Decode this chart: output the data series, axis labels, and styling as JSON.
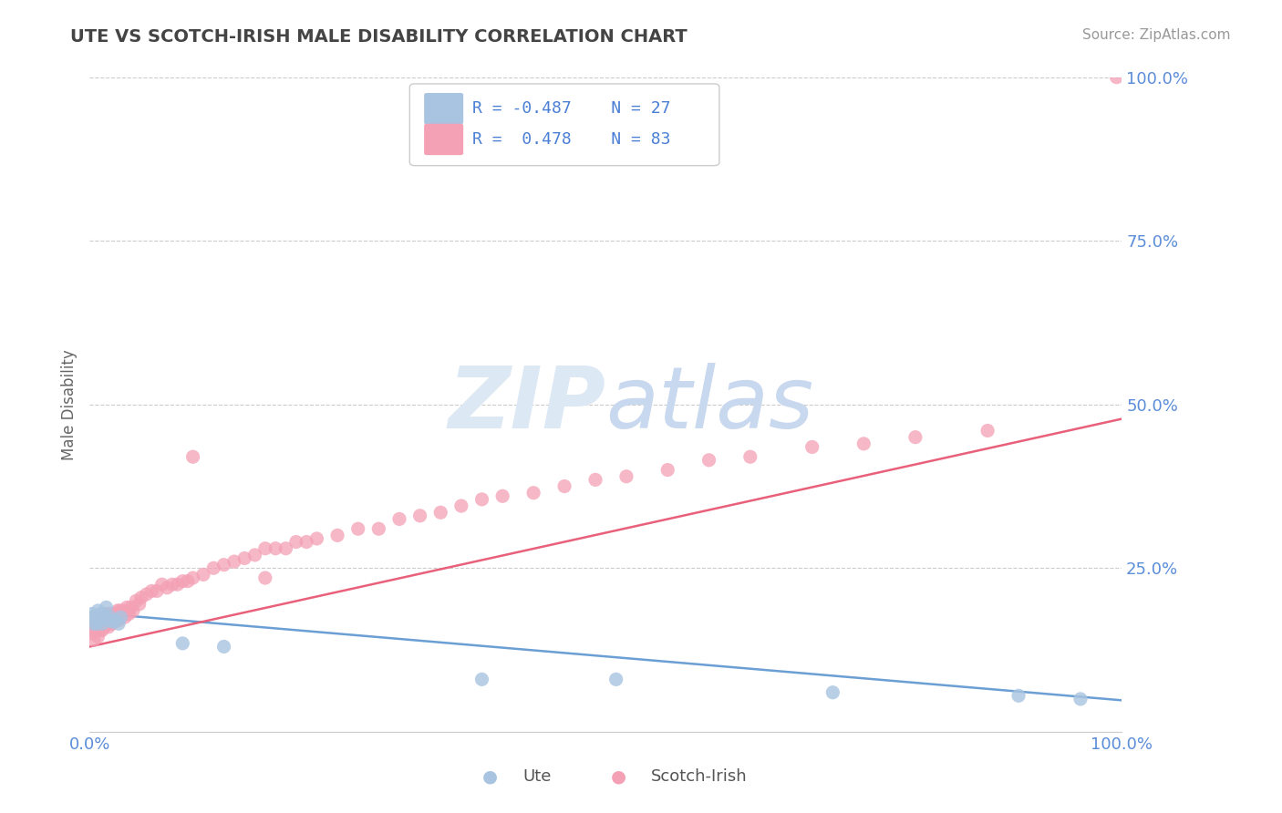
{
  "title": "UTE VS SCOTCH-IRISH MALE DISABILITY CORRELATION CHART",
  "source": "Source: ZipAtlas.com",
  "ylabel": "Male Disability",
  "xlim": [
    0,
    1
  ],
  "ylim": [
    0,
    1
  ],
  "xticks": [
    0.0,
    1.0
  ],
  "xticklabels": [
    "0.0%",
    "100.0%"
  ],
  "yticks": [
    0.0,
    0.25,
    0.5,
    0.75,
    1.0
  ],
  "yticklabels": [
    "",
    "25.0%",
    "50.0%",
    "75.0%",
    "100.0%"
  ],
  "ute_R": -0.487,
  "ute_N": 27,
  "scotch_R": 0.478,
  "scotch_N": 83,
  "ute_color": "#a8c4e0",
  "scotch_color": "#f4a0b5",
  "ute_line_color": "#6b9fd4",
  "scotch_line_color": "#e8607a",
  "background_color": "#ffffff",
  "grid_color": "#cccccc",
  "title_color": "#444444",
  "label_color": "#5b8dd9",
  "watermark_color": "#dde8f5",
  "legend_R_color": "#4a7fd4",
  "ute_x": [
    0.002,
    0.003,
    0.004,
    0.005,
    0.006,
    0.007,
    0.008,
    0.009,
    0.01,
    0.011,
    0.012,
    0.013,
    0.015,
    0.016,
    0.018,
    0.02,
    0.022,
    0.025,
    0.028,
    0.03,
    0.09,
    0.13,
    0.38,
    0.51,
    0.72,
    0.9,
    0.96
  ],
  "ute_y": [
    0.18,
    0.175,
    0.165,
    0.17,
    0.175,
    0.165,
    0.185,
    0.17,
    0.175,
    0.18,
    0.165,
    0.18,
    0.175,
    0.19,
    0.17,
    0.175,
    0.168,
    0.17,
    0.165,
    0.175,
    0.135,
    0.13,
    0.08,
    0.08,
    0.06,
    0.055,
    0.05
  ],
  "scotch_x": [
    0.002,
    0.003,
    0.004,
    0.005,
    0.006,
    0.007,
    0.008,
    0.009,
    0.01,
    0.011,
    0.012,
    0.013,
    0.014,
    0.015,
    0.016,
    0.017,
    0.018,
    0.019,
    0.02,
    0.021,
    0.022,
    0.023,
    0.024,
    0.025,
    0.026,
    0.027,
    0.028,
    0.029,
    0.03,
    0.032,
    0.034,
    0.036,
    0.038,
    0.04,
    0.042,
    0.045,
    0.048,
    0.05,
    0.055,
    0.06,
    0.065,
    0.07,
    0.075,
    0.08,
    0.085,
    0.09,
    0.095,
    0.1,
    0.11,
    0.12,
    0.13,
    0.14,
    0.15,
    0.16,
    0.17,
    0.18,
    0.19,
    0.2,
    0.21,
    0.22,
    0.24,
    0.26,
    0.28,
    0.3,
    0.32,
    0.34,
    0.36,
    0.38,
    0.4,
    0.43,
    0.46,
    0.49,
    0.52,
    0.56,
    0.6,
    0.64,
    0.7,
    0.75,
    0.8,
    0.87,
    0.1,
    0.17,
    0.995
  ],
  "scotch_y": [
    0.15,
    0.155,
    0.14,
    0.16,
    0.155,
    0.165,
    0.145,
    0.165,
    0.155,
    0.165,
    0.155,
    0.175,
    0.16,
    0.175,
    0.165,
    0.18,
    0.16,
    0.175,
    0.165,
    0.18,
    0.165,
    0.175,
    0.17,
    0.18,
    0.175,
    0.185,
    0.17,
    0.185,
    0.175,
    0.185,
    0.175,
    0.19,
    0.18,
    0.19,
    0.185,
    0.2,
    0.195,
    0.205,
    0.21,
    0.215,
    0.215,
    0.225,
    0.22,
    0.225,
    0.225,
    0.23,
    0.23,
    0.235,
    0.24,
    0.25,
    0.255,
    0.26,
    0.265,
    0.27,
    0.28,
    0.28,
    0.28,
    0.29,
    0.29,
    0.295,
    0.3,
    0.31,
    0.31,
    0.325,
    0.33,
    0.335,
    0.345,
    0.355,
    0.36,
    0.365,
    0.375,
    0.385,
    0.39,
    0.4,
    0.415,
    0.42,
    0.435,
    0.44,
    0.45,
    0.46,
    0.42,
    0.235,
    1.0
  ],
  "ute_trend_x": [
    0.0,
    1.0
  ],
  "ute_trend_y": [
    0.182,
    0.048
  ],
  "scotch_trend_x": [
    0.0,
    1.0
  ],
  "scotch_trend_y": [
    0.13,
    0.478
  ]
}
